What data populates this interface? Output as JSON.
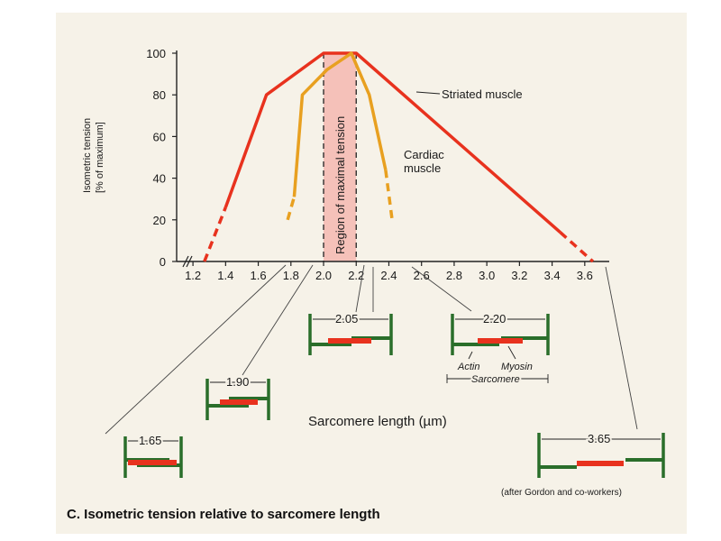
{
  "chart_data": {
    "type": "line",
    "title": "",
    "caption": "C. Isometric tension relative to sarcomere length",
    "xlabel": "Sarcomere length (µm)",
    "ylabel_line1": "Isometric tension",
    "ylabel_line2": "[% of maximum]",
    "xlim": [
      1.1,
      3.75
    ],
    "ylim": [
      0,
      100
    ],
    "x_ticks": [
      "1.2",
      "1.4",
      "1.6",
      "1.8",
      "2.0",
      "2.2",
      "2.4",
      "2.6",
      "2.8",
      "3.0",
      "3.2",
      "3.4",
      "3.6"
    ],
    "y_ticks": [
      "0",
      "20",
      "40",
      "60",
      "80",
      "100"
    ],
    "region_label": "Region of maximal tension",
    "region": [
      2.0,
      2.2
    ],
    "series": [
      {
        "name": "Striated muscle",
        "color": "#e8321e",
        "solid": [
          [
            1.4,
            26
          ],
          [
            1.65,
            80
          ],
          [
            2.0,
            100
          ],
          [
            2.2,
            100
          ],
          [
            3.45,
            14
          ]
        ],
        "dashed": [
          [
            1.27,
            0
          ],
          [
            1.4,
            26
          ],
          [
            3.45,
            14
          ],
          [
            3.65,
            0
          ]
        ]
      },
      {
        "name": "Cardiac muscle",
        "color": "#e8a020",
        "solid": [
          [
            1.82,
            31
          ],
          [
            1.87,
            80
          ],
          [
            2.02,
            92
          ],
          [
            2.17,
            100
          ],
          [
            2.28,
            80
          ],
          [
            2.38,
            44
          ]
        ],
        "dashed": [
          [
            1.78,
            20
          ],
          [
            1.82,
            31
          ],
          [
            2.38,
            44
          ],
          [
            2.42,
            20
          ]
        ]
      }
    ],
    "diagram_labels": {
      "l165": "1.65",
      "l190": "1.90",
      "l205": "2.05",
      "l220": "2.20",
      "l365": "3.65",
      "actin": "Actin",
      "myosin": "Myosin",
      "sarcomere": "Sarcomere",
      "credit": "(after Gordon and co-workers)"
    }
  }
}
